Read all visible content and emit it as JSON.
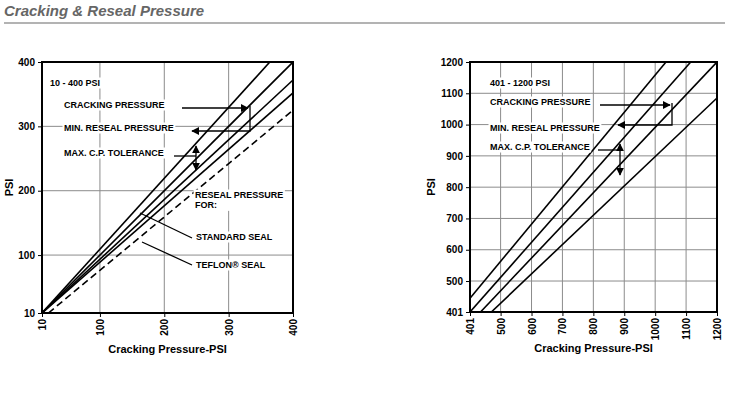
{
  "header": {
    "title": "Cracking & Reseal Pressure"
  },
  "chart_data": [
    {
      "type": "line",
      "title": "10 - 400 PSI",
      "x_label": "Cracking Pressure-PSI",
      "y_label": "PSI",
      "xlim": [
        10,
        400
      ],
      "ylim": [
        10,
        400
      ],
      "xticks": [
        10,
        100,
        200,
        300,
        400
      ],
      "yticks": [
        10,
        100,
        200,
        300,
        400
      ],
      "grid": true,
      "color": "#000000",
      "annotations": [
        "CRACKING PRESSURE",
        "MIN. RESEAL PRESSURE",
        "MAX. C.P. TOLERANCE",
        "RESEAL PRESSURE FOR:",
        "STANDARD SEAL",
        "TEFLON® SEAL"
      ],
      "series": [
        {
          "x": [
            10,
            364
          ],
          "values": [
            10,
            400
          ],
          "line_style": "solid"
        },
        {
          "x": [
            10,
            400
          ],
          "values": [
            10,
            400
          ],
          "line_style": "solid"
        },
        {
          "x": [
            10,
            400
          ],
          "values": [
            10,
            372
          ],
          "line_style": "solid"
        },
        {
          "x": [
            10,
            400
          ],
          "values": [
            10,
            352
          ],
          "line_style": "solid"
        },
        {
          "x": [
            20,
            400
          ],
          "values": [
            10,
            325
          ],
          "line_style": "dashed"
        }
      ]
    },
    {
      "type": "line",
      "title": "401 - 1200 PSI",
      "x_label": "Cracking Pressure-PSI",
      "y_label": "PSI",
      "xlim": [
        401,
        1200
      ],
      "ylim": [
        401,
        1200
      ],
      "xticks": [
        401,
        500,
        600,
        700,
        800,
        900,
        1000,
        1100,
        1200
      ],
      "yticks": [
        401,
        500,
        600,
        700,
        800,
        900,
        1000,
        1100,
        1200
      ],
      "grid": true,
      "color": "#000000",
      "annotations": [
        "CRACKING PRESSURE",
        "MIN. RESEAL PRESSURE",
        "MAX. C.P. TOLERANCE"
      ],
      "series": [
        {
          "x": [
            401,
            1035
          ],
          "values": [
            445,
            1200
          ],
          "line_style": "solid"
        },
        {
          "x": [
            401,
            1115
          ],
          "values": [
            401,
            1200
          ],
          "line_style": "solid"
        },
        {
          "x": [
            435,
            1200
          ],
          "values": [
            401,
            1200
          ],
          "line_style": "solid"
        },
        {
          "x": [
            470,
            1200
          ],
          "values": [
            401,
            1085
          ],
          "line_style": "solid"
        }
      ]
    }
  ]
}
